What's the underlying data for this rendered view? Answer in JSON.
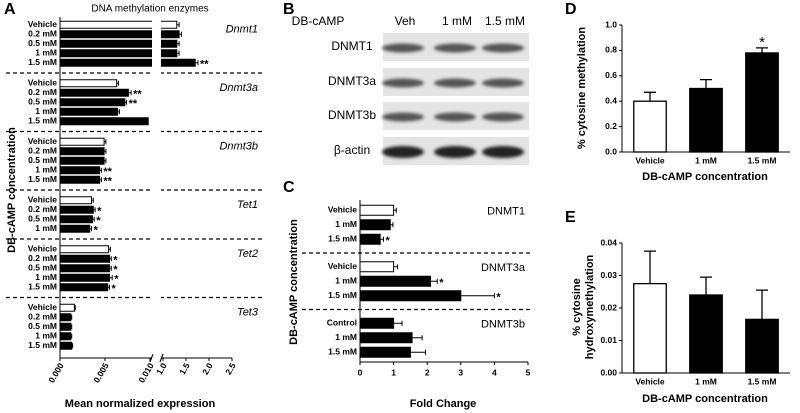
{
  "chart_data": [
    {
      "type": "bar",
      "orientation": "horizontal",
      "panel": "A",
      "title": "DNA methylation enzymes",
      "xlabel": "Mean normalized expression",
      "ylabel": "DB-cAMP concentration",
      "xlim": [
        0,
        2.5
      ],
      "xbreak": [
        0.01,
        1.0
      ],
      "xticks": [
        {
          "value": 0,
          "label": "0.000"
        },
        {
          "value": 0.005,
          "label": "0.005"
        },
        {
          "value": 0.01,
          "label": "0.010"
        },
        {
          "value": 1,
          "label": "1.0"
        },
        1.5,
        {
          "value": 2,
          "label": "2.0"
        },
        2.5
      ],
      "groups": [
        {
          "name": "Dnmt1",
          "categories": [
            "Vehicle",
            "0.2 mM",
            "0.5 mM",
            "1 mM",
            "1.5 mM"
          ],
          "values": [
            1.3,
            1.35,
            1.3,
            1.3,
            1.7
          ],
          "errors": [
            0.05,
            0.05,
            0.05,
            0.05,
            0.06
          ],
          "colors": [
            "#ffffff",
            "#000000",
            "#000000",
            "#000000",
            "#000000"
          ],
          "annotations": [
            null,
            null,
            null,
            null,
            "**"
          ]
        },
        {
          "name": "Dnmt3a",
          "categories": [
            "Vehicle",
            "0.2 mM",
            "0.5 mM",
            "1 mM",
            "1.5 mM"
          ],
          "values": [
            0.0063,
            0.0076,
            0.0072,
            0.0064,
            0.0098
          ],
          "errors": [
            0.0002,
            0.0003,
            0.0002,
            0.0002,
            0.0003
          ],
          "colors": [
            "#ffffff",
            "#000000",
            "#000000",
            "#000000",
            "#000000"
          ],
          "annotations": [
            null,
            "**",
            "**",
            null,
            "**"
          ]
        },
        {
          "name": "Dnmt3b",
          "categories": [
            "Vehicle",
            "0.2 mM",
            "0.5 mM",
            "1 mM",
            "1.5 mM"
          ],
          "values": [
            0.0049,
            0.0049,
            0.0049,
            0.0044,
            0.0044
          ],
          "errors": [
            0.0002,
            0.0002,
            0.0002,
            0.0002,
            0.0002
          ],
          "colors": [
            "#ffffff",
            "#000000",
            "#000000",
            "#000000",
            "#000000"
          ],
          "annotations": [
            null,
            null,
            null,
            "**",
            "**"
          ]
        },
        {
          "name": "Tet1",
          "categories": [
            "Vehicle",
            "0.2 mM",
            "0.5 mM",
            "1 mM"
          ],
          "values": [
            0.0035,
            0.0037,
            0.0036,
            0.0033
          ],
          "errors": [
            0.0002,
            0.0002,
            0.0002,
            0.0002
          ],
          "colors": [
            "#ffffff",
            "#000000",
            "#000000",
            "#000000"
          ],
          "annotations": [
            null,
            "*",
            "*",
            "*"
          ]
        },
        {
          "name": "Tet2",
          "categories": [
            "Vehicle",
            "0.2 mM",
            "0.5 mM",
            "1 mM",
            "1.5 mM"
          ],
          "values": [
            0.0054,
            0.0055,
            0.0055,
            0.0055,
            0.0053
          ],
          "errors": [
            0.0002,
            0.0002,
            0.0002,
            0.0003,
            0.0002
          ],
          "colors": [
            "#ffffff",
            "#000000",
            "#000000",
            "#000000",
            "#000000"
          ],
          "annotations": [
            null,
            "*",
            "*",
            "*",
            "*"
          ]
        },
        {
          "name": "Tet3",
          "categories": [
            "Vehicle",
            "0.2 mM",
            "0.5 mM",
            "1 mM",
            "1.5 mM"
          ],
          "values": [
            0.0016,
            0.0012,
            0.0012,
            0.0012,
            0.0013
          ],
          "errors": [
            0.0001,
            0.0001,
            0.0001,
            0.0001,
            0.0001
          ],
          "colors": [
            "#ffffff",
            "#000000",
            "#000000",
            "#000000",
            "#000000"
          ],
          "annotations": [
            null,
            null,
            null,
            null,
            null
          ]
        }
      ]
    },
    {
      "type": "bar",
      "orientation": "horizontal",
      "panel": "C",
      "xlabel": "Fold Change",
      "ylabel": "DB-cAMP concentration",
      "xlim": [
        0,
        5
      ],
      "xticks": [
        0,
        1,
        2,
        3,
        4,
        5
      ],
      "groups": [
        {
          "name": "DNMT1",
          "categories": [
            "Vehicle",
            "1 mM",
            "1.5 mM"
          ],
          "values": [
            1.0,
            0.9,
            0.6
          ],
          "errors": [
            0.08,
            0.08,
            0.1
          ],
          "colors": [
            "#ffffff",
            "#000000",
            "#000000"
          ],
          "annotations": [
            null,
            null,
            "*"
          ]
        },
        {
          "name": "DNMT3a",
          "categories": [
            "Vehicle",
            "1 mM",
            "1.5 mM"
          ],
          "values": [
            1.0,
            2.1,
            3.0
          ],
          "errors": [
            0.12,
            0.2,
            1.0
          ],
          "colors": [
            "#ffffff",
            "#000000",
            "#000000"
          ],
          "annotations": [
            null,
            "*",
            "*"
          ]
        },
        {
          "name": "DNMT3b",
          "categories": [
            "Control",
            "1 mM",
            "1.5 mM"
          ],
          "values": [
            1.0,
            1.55,
            1.5
          ],
          "errors": [
            0.25,
            0.3,
            0.45
          ],
          "colors": [
            "#000000",
            "#000000",
            "#000000"
          ],
          "annotations": [
            null,
            null,
            null
          ]
        }
      ]
    },
    {
      "type": "bar",
      "orientation": "vertical",
      "panel": "D",
      "xlabel": "DB-cAMP concentration",
      "ylabel": [
        "% cytosine methylation"
      ],
      "ylim": [
        0,
        1.0
      ],
      "yticks": [
        {
          "value": 0,
          "label": "0.0"
        },
        0.2,
        0.4,
        0.6,
        0.8,
        {
          "value": 1,
          "label": "1.0"
        }
      ],
      "categories": [
        "Vehicle",
        "1 mM",
        "1.5 mM"
      ],
      "values": [
        0.4,
        0.5,
        0.78
      ],
      "errors": [
        0.07,
        0.07,
        0.04
      ],
      "colors": [
        "#ffffff",
        "#000000",
        "#000000"
      ],
      "annotations": [
        null,
        null,
        "*"
      ]
    },
    {
      "type": "bar",
      "orientation": "vertical",
      "panel": "E",
      "xlabel": "DB-cAMP concentration",
      "ylabel": [
        "% cytosine",
        "hydroxymethylation"
      ],
      "ylim": [
        0,
        0.04
      ],
      "yticks": [
        {
          "value": 0,
          "label": "0.00"
        },
        0.01,
        0.02,
        0.03,
        0.04
      ],
      "categories": [
        "Vehicle",
        "1 mM",
        "1.5 mM"
      ],
      "values": [
        0.0275,
        0.024,
        0.0165
      ],
      "errors": [
        0.01,
        0.0055,
        0.009
      ],
      "colors": [
        "#ffffff",
        "#000000",
        "#000000"
      ],
      "annotations": [
        null,
        null,
        null
      ]
    }
  ],
  "blot": {
    "panel": "B",
    "treatment_label": "DB-cAMP",
    "lanes": [
      "Veh",
      "1 mM",
      "1.5 mM"
    ],
    "proteins": [
      "DNMT1",
      "DNMT3a",
      "DNMT3b",
      "β-actin"
    ]
  }
}
